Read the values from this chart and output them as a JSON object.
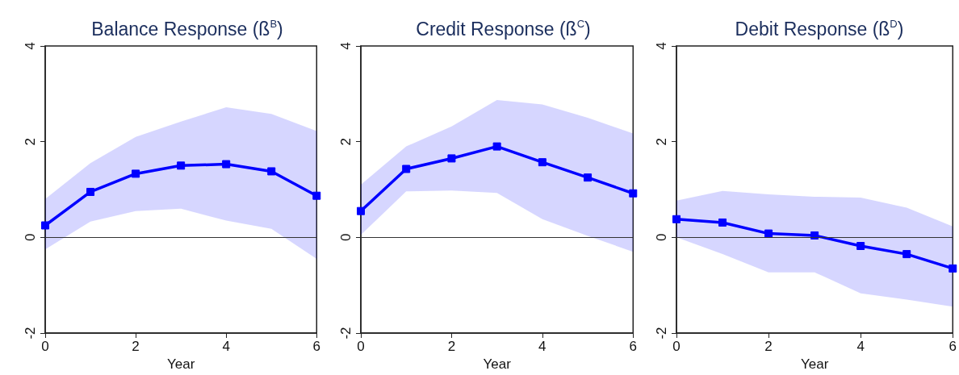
{
  "chart_data": [
    {
      "type": "line",
      "title": "Balance Response (ß$^{B}$)",
      "xlabel": "Year",
      "x": [
        0,
        1,
        2,
        3,
        4,
        5,
        6
      ],
      "xlim": [
        0,
        6
      ],
      "xticks": [
        0,
        2,
        4,
        6
      ],
      "ylim": [
        -2,
        4
      ],
      "yticks": [
        -2,
        0,
        2,
        4
      ],
      "grid": false,
      "marker": "square",
      "line_style": "solid",
      "ref_lines": [
        {
          "axis": "y",
          "value": 0,
          "color": "#333333"
        }
      ],
      "series": [
        {
          "color": "#0000ff",
          "values": [
            0.25,
            0.95,
            1.33,
            1.5,
            1.53,
            1.38,
            0.87
          ],
          "lower": [
            -0.25,
            0.33,
            0.55,
            0.6,
            0.35,
            0.18,
            -0.45
          ],
          "upper": [
            0.8,
            1.55,
            2.1,
            2.42,
            2.72,
            2.58,
            2.22
          ]
        }
      ]
    },
    {
      "type": "line",
      "title": "Credit Response (ß$^{C}$)",
      "xlabel": "Year",
      "x": [
        0,
        1,
        2,
        3,
        4,
        5,
        6
      ],
      "xlim": [
        0,
        6
      ],
      "xticks": [
        0,
        2,
        4,
        6
      ],
      "ylim": [
        -2,
        4
      ],
      "yticks": [
        -2,
        0,
        2,
        4
      ],
      "grid": false,
      "marker": "square",
      "line_style": "solid",
      "ref_lines": [
        {
          "axis": "y",
          "value": 0,
          "color": "#333333"
        }
      ],
      "series": [
        {
          "color": "#0000ff",
          "values": [
            0.55,
            1.43,
            1.65,
            1.9,
            1.57,
            1.25,
            0.92
          ],
          "lower": [
            0.05,
            0.96,
            0.98,
            0.93,
            0.38,
            0.03,
            -0.3
          ],
          "upper": [
            1.1,
            1.9,
            2.32,
            2.87,
            2.78,
            2.5,
            2.17
          ]
        }
      ]
    },
    {
      "type": "line",
      "title": "Debit Response (ß$^{D}$)",
      "xlabel": "Year",
      "x": [
        0,
        1,
        2,
        3,
        4,
        5,
        6
      ],
      "xlim": [
        0,
        6
      ],
      "xticks": [
        0,
        2,
        4,
        6
      ],
      "ylim": [
        -2,
        4
      ],
      "yticks": [
        -2,
        0,
        2,
        4
      ],
      "grid": false,
      "marker": "square",
      "line_style": "solid",
      "ref_lines": [
        {
          "axis": "y",
          "value": 0,
          "color": "#333333"
        }
      ],
      "series": [
        {
          "color": "#0000ff",
          "values": [
            0.38,
            0.31,
            0.08,
            0.04,
            -0.18,
            -0.35,
            -0.65
          ],
          "lower": [
            0.0,
            -0.35,
            -0.73,
            -0.73,
            -1.17,
            -1.3,
            -1.45
          ],
          "upper": [
            0.77,
            0.97,
            0.9,
            0.85,
            0.83,
            0.62,
            0.23
          ]
        }
      ]
    }
  ]
}
